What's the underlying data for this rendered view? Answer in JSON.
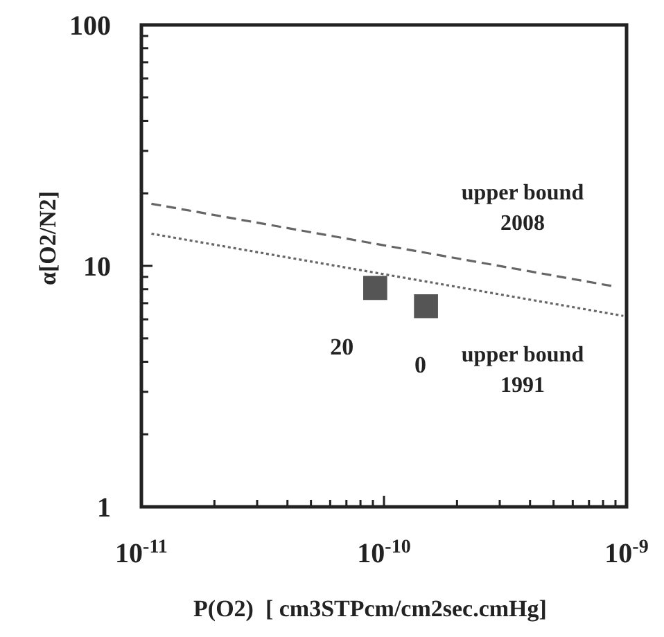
{
  "chart_data": {
    "type": "scatter",
    "xlabel": "P(O2)  [ cm3STPcm/cm2sec.cmHg]",
    "ylabel": "α[O2/N2]",
    "log": "xy",
    "grid": false,
    "xlim": [
      1e-11,
      1e-09
    ],
    "ylim": [
      1,
      100
    ],
    "xticks": [
      {
        "value": 1e-11,
        "label": "10$^{-11}$"
      },
      {
        "value": 2e-11,
        "label": null
      },
      {
        "value": 3e-11,
        "label": null
      },
      {
        "value": 4e-11,
        "label": null
      },
      {
        "value": 5e-11,
        "label": null
      },
      {
        "value": 6e-11,
        "label": null
      },
      {
        "value": 7e-11,
        "label": null
      },
      {
        "value": 8e-11,
        "label": null
      },
      {
        "value": 9e-11,
        "label": null
      },
      {
        "value": 1e-10,
        "label": "10$^{-10}$"
      },
      {
        "value": 2e-10,
        "label": null
      },
      {
        "value": 3e-10,
        "label": null
      },
      {
        "value": 4e-10,
        "label": null
      },
      {
        "value": 5e-10,
        "label": null
      },
      {
        "value": 6e-10,
        "label": null
      },
      {
        "value": 7e-10,
        "label": null
      },
      {
        "value": 8e-10,
        "label": null
      },
      {
        "value": 9e-10,
        "label": null
      },
      {
        "value": 1e-09,
        "label": "10$^{-9}$"
      }
    ],
    "yticks": [
      1,
      {
        "value": 2,
        "label": null
      },
      {
        "value": 3,
        "label": null
      },
      {
        "value": 4,
        "label": null
      },
      {
        "value": 5,
        "label": null
      },
      {
        "value": 6,
        "label": null
      },
      {
        "value": 7,
        "label": null
      },
      {
        "value": 8,
        "label": null
      },
      {
        "value": 9,
        "label": null
      },
      10,
      {
        "value": 20,
        "label": null
      },
      {
        "value": 30,
        "label": null
      },
      {
        "value": 40,
        "label": null
      },
      {
        "value": 50,
        "label": null
      },
      {
        "value": 60,
        "label": null
      },
      {
        "value": 70,
        "label": null
      },
      {
        "value": 80,
        "label": null
      },
      {
        "value": 90,
        "label": null
      },
      100
    ],
    "series": [
      {
        "type": "line",
        "color": "#666666",
        "line_style": "dashed",
        "marker": "none",
        "x": [
          1.1e-11,
          9e-10
        ],
        "values": [
          18.1,
          8.2
        ]
      },
      {
        "type": "line",
        "color": "#666666",
        "line_style": "dotted",
        "marker": "none",
        "x": [
          1.1e-11,
          9.7e-10
        ],
        "values": [
          13.6,
          6.2
        ]
      },
      {
        "color": "#555555",
        "marker": "square",
        "x": [
          9.2e-11,
          1.49e-10
        ],
        "values": [
          8.1,
          6.8
        ]
      }
    ],
    "annotations": [
      "upper bound\n2008",
      "upper bound\n1991",
      {
        "text": "20",
        "x": 9.2e-11,
        "y": 8.1
      },
      {
        "text": "0",
        "x": 1.49e-10,
        "y": 6.8
      }
    ]
  }
}
